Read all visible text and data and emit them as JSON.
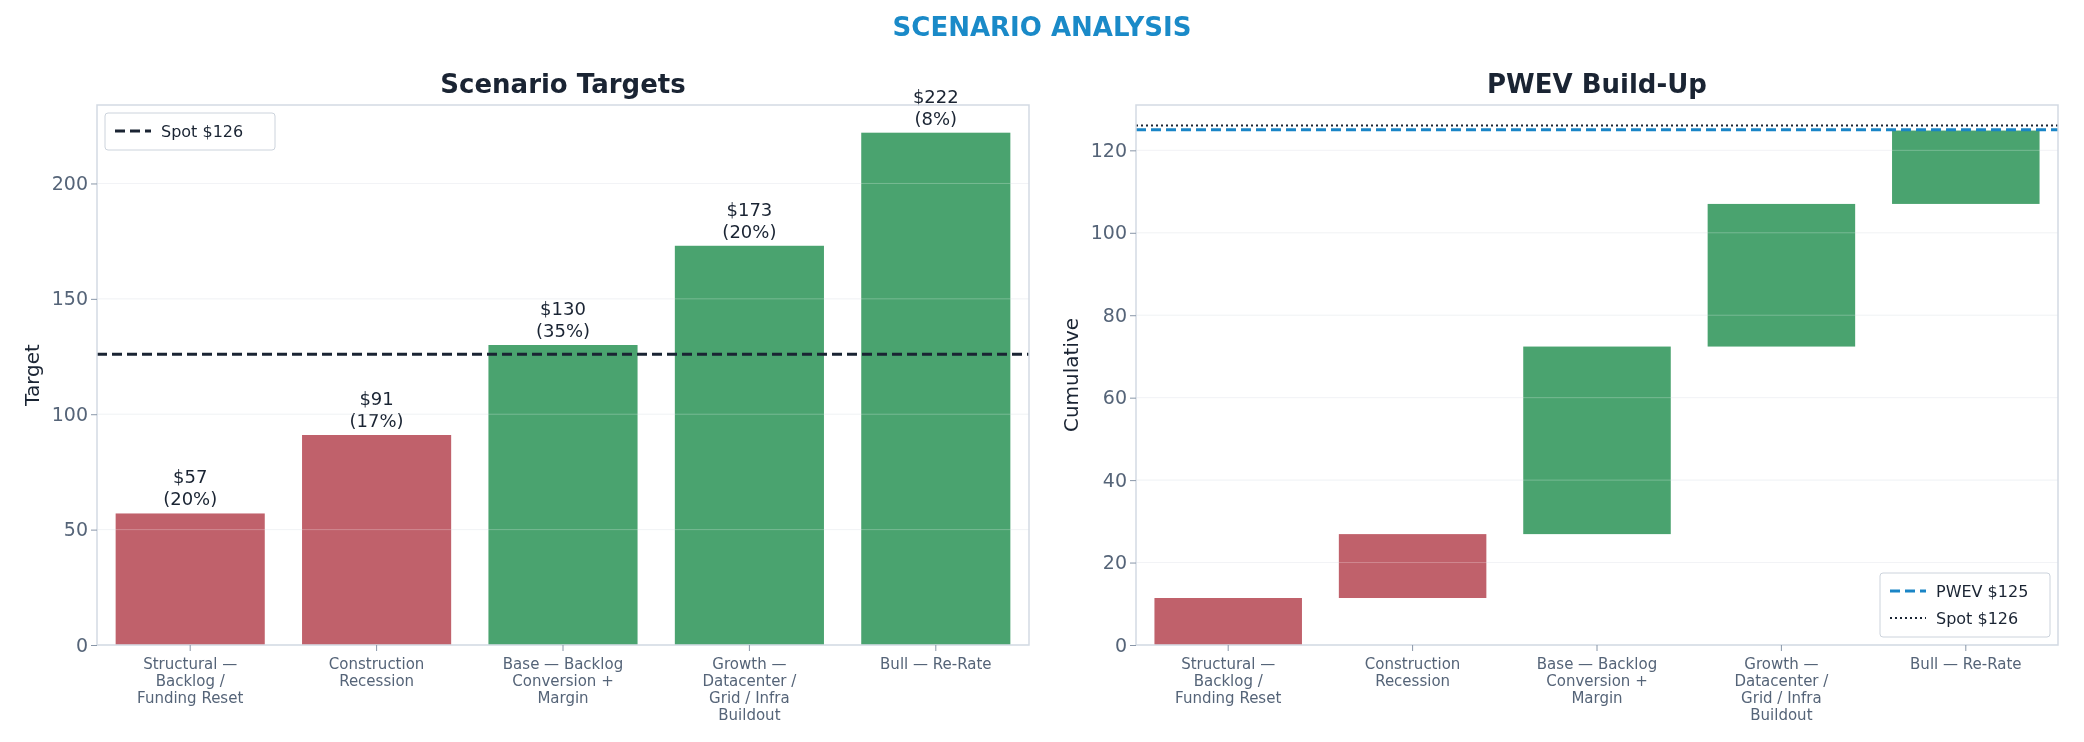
{
  "chart_data": [
    {
      "type": "other",
      "title": "SCENARIO ANALYSIS",
      "color": "#1a8ac8"
    },
    {
      "type": "bar",
      "title": "Scenario Targets",
      "ylabel": "Target",
      "categories": [
        "Structural —\nBacklog /\nFunding Reset",
        "Construction\nRecession",
        "Base — Backlog\nConversion +\nMargin",
        "Growth —\nDatacenter /\nGrid / Infra\nBuildout",
        "Bull — Re-Rate"
      ],
      "values": [
        57,
        91,
        130,
        173,
        222
      ],
      "colors": [
        "#c0616b",
        "#c0616b",
        "#4aa36f",
        "#4aa36f",
        "#4aa36f"
      ],
      "value_labels": [
        "$57\n(20%)",
        "$91\n(17%)",
        "$130\n(35%)",
        "$173\n(20%)",
        "$222\n(8%)"
      ],
      "ylim": [
        0,
        234
      ],
      "yticks": [
        0,
        50,
        100,
        150,
        200
      ],
      "grid": "y",
      "legend": "top left",
      "ref_lines": [
        {
          "axis": "y",
          "value": 126,
          "label": "Spot $126",
          "color": "#1a2433",
          "line_style": "dashed"
        }
      ]
    },
    {
      "type": "bar",
      "title": "PWEV Build-Up",
      "ylabel": "Cumulative",
      "categories": [
        "Structural —\nBacklog /\nFunding Reset",
        "Construction\nRecession",
        "Base — Backlog\nConversion +\nMargin",
        "Growth —\nDatacenter /\nGrid / Infra\nBuildout",
        "Bull — Re-Rate"
      ],
      "values": [
        11.4,
        15.5,
        45.5,
        34.6,
        17.8
      ],
      "base": [
        0,
        11.4,
        26.9,
        72.4,
        107
      ],
      "colors": [
        "#c0616b",
        "#c0616b",
        "#4aa36f",
        "#4aa36f",
        "#4aa36f"
      ],
      "ylim": [
        0,
        131
      ],
      "yticks": [
        0,
        20,
        40,
        60,
        80,
        100,
        120
      ],
      "grid": "y",
      "legend": "bottom right",
      "ref_lines": [
        {
          "axis": "y",
          "value": 125,
          "label": "PWEV $125",
          "color": "#1a85c6",
          "line_style": "dashed"
        },
        {
          "axis": "y",
          "value": 126,
          "label": "Spot $126",
          "color": "#1a2433",
          "line_style": "dotted"
        }
      ]
    }
  ]
}
